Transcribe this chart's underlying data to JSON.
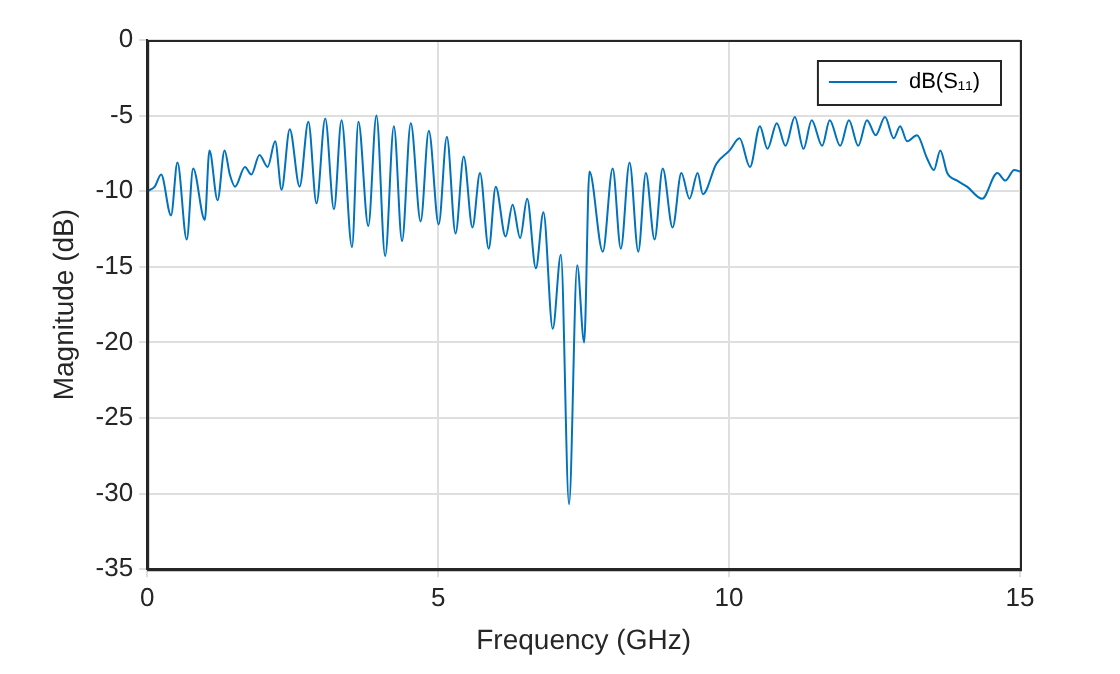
{
  "chart_data": {
    "type": "line",
    "xlabel": "Frequency (GHz)",
    "ylabel": "Magnitude (dB)",
    "xlim": [
      0,
      15
    ],
    "xticks": [
      0,
      5,
      10,
      15
    ],
    "ylim": [
      -35,
      0
    ],
    "yticks": [
      -35,
      -30,
      -25,
      -20,
      -15,
      -10,
      -5,
      0
    ],
    "grid": true,
    "legend": "top right",
    "marker": "none",
    "line_style": "solid",
    "series": [
      {
        "name": "dB(S₁₁)",
        "color": "#0072bd",
        "x": [
          0,
          0.13,
          0.24,
          0.41,
          0.52,
          0.68,
          0.79,
          0.99,
          1.07,
          1.21,
          1.33,
          1.42,
          1.51,
          1.68,
          1.79,
          1.93,
          2.07,
          2.2,
          2.31,
          2.45,
          2.62,
          2.77,
          2.91,
          3.06,
          3.21,
          3.34,
          3.52,
          3.63,
          3.8,
          3.94,
          4.09,
          4.24,
          4.38,
          4.53,
          4.7,
          4.84,
          5.01,
          5.15,
          5.3,
          5.44,
          5.59,
          5.72,
          5.87,
          5.99,
          6.16,
          6.28,
          6.41,
          6.53,
          6.68,
          6.81,
          6.97,
          7.11,
          7.25,
          7.39,
          7.51,
          7.6,
          7.83,
          8.0,
          8.14,
          8.29,
          8.44,
          8.57,
          8.72,
          8.86,
          9.03,
          9.18,
          9.32,
          9.46,
          9.55,
          9.78,
          10.01,
          10.18,
          10.36,
          10.53,
          10.66,
          10.82,
          10.97,
          11.13,
          11.28,
          11.42,
          11.6,
          11.73,
          11.91,
          12.06,
          12.22,
          12.37,
          12.52,
          12.68,
          12.83,
          12.94,
          13.06,
          13.23,
          13.4,
          13.52,
          13.63,
          13.75,
          13.92,
          14.09,
          14.35,
          14.61,
          14.75,
          14.9,
          15
        ],
        "values": [
          -10,
          -9.7,
          -8.9,
          -11.6,
          -8.1,
          -13.2,
          -8.5,
          -11.9,
          -7.3,
          -10.6,
          -7.3,
          -8.9,
          -9.7,
          -8.4,
          -8.9,
          -7.6,
          -8.4,
          -6.7,
          -9.9,
          -5.9,
          -9.7,
          -5.4,
          -10.8,
          -5.2,
          -11.2,
          -5.3,
          -13.7,
          -5.4,
          -12.3,
          -5.0,
          -14.3,
          -5.7,
          -13.3,
          -5.5,
          -12.0,
          -6.0,
          -12.2,
          -6.4,
          -12.8,
          -7.7,
          -12.4,
          -8.8,
          -13.8,
          -9.7,
          -13.0,
          -10.9,
          -13.1,
          -10.5,
          -15.1,
          -11.4,
          -19.1,
          -14.2,
          -30.7,
          -14.9,
          -20.0,
          -8.7,
          -14.0,
          -8.5,
          -13.8,
          -8.1,
          -14.0,
          -8.8,
          -13.2,
          -8.5,
          -12.4,
          -8.8,
          -10.5,
          -8.8,
          -10.2,
          -8.2,
          -7.3,
          -6.5,
          -8.4,
          -5.7,
          -7.2,
          -5.5,
          -7.0,
          -5.1,
          -7.2,
          -5.3,
          -7.0,
          -5.3,
          -7.0,
          -5.3,
          -7.0,
          -5.3,
          -6.3,
          -5.1,
          -6.5,
          -5.7,
          -6.7,
          -6.3,
          -7.8,
          -8.6,
          -7.3,
          -8.8,
          -9.3,
          -9.7,
          -10.5,
          -8.8,
          -9.3,
          -8.6,
          -8.7
        ]
      }
    ]
  }
}
